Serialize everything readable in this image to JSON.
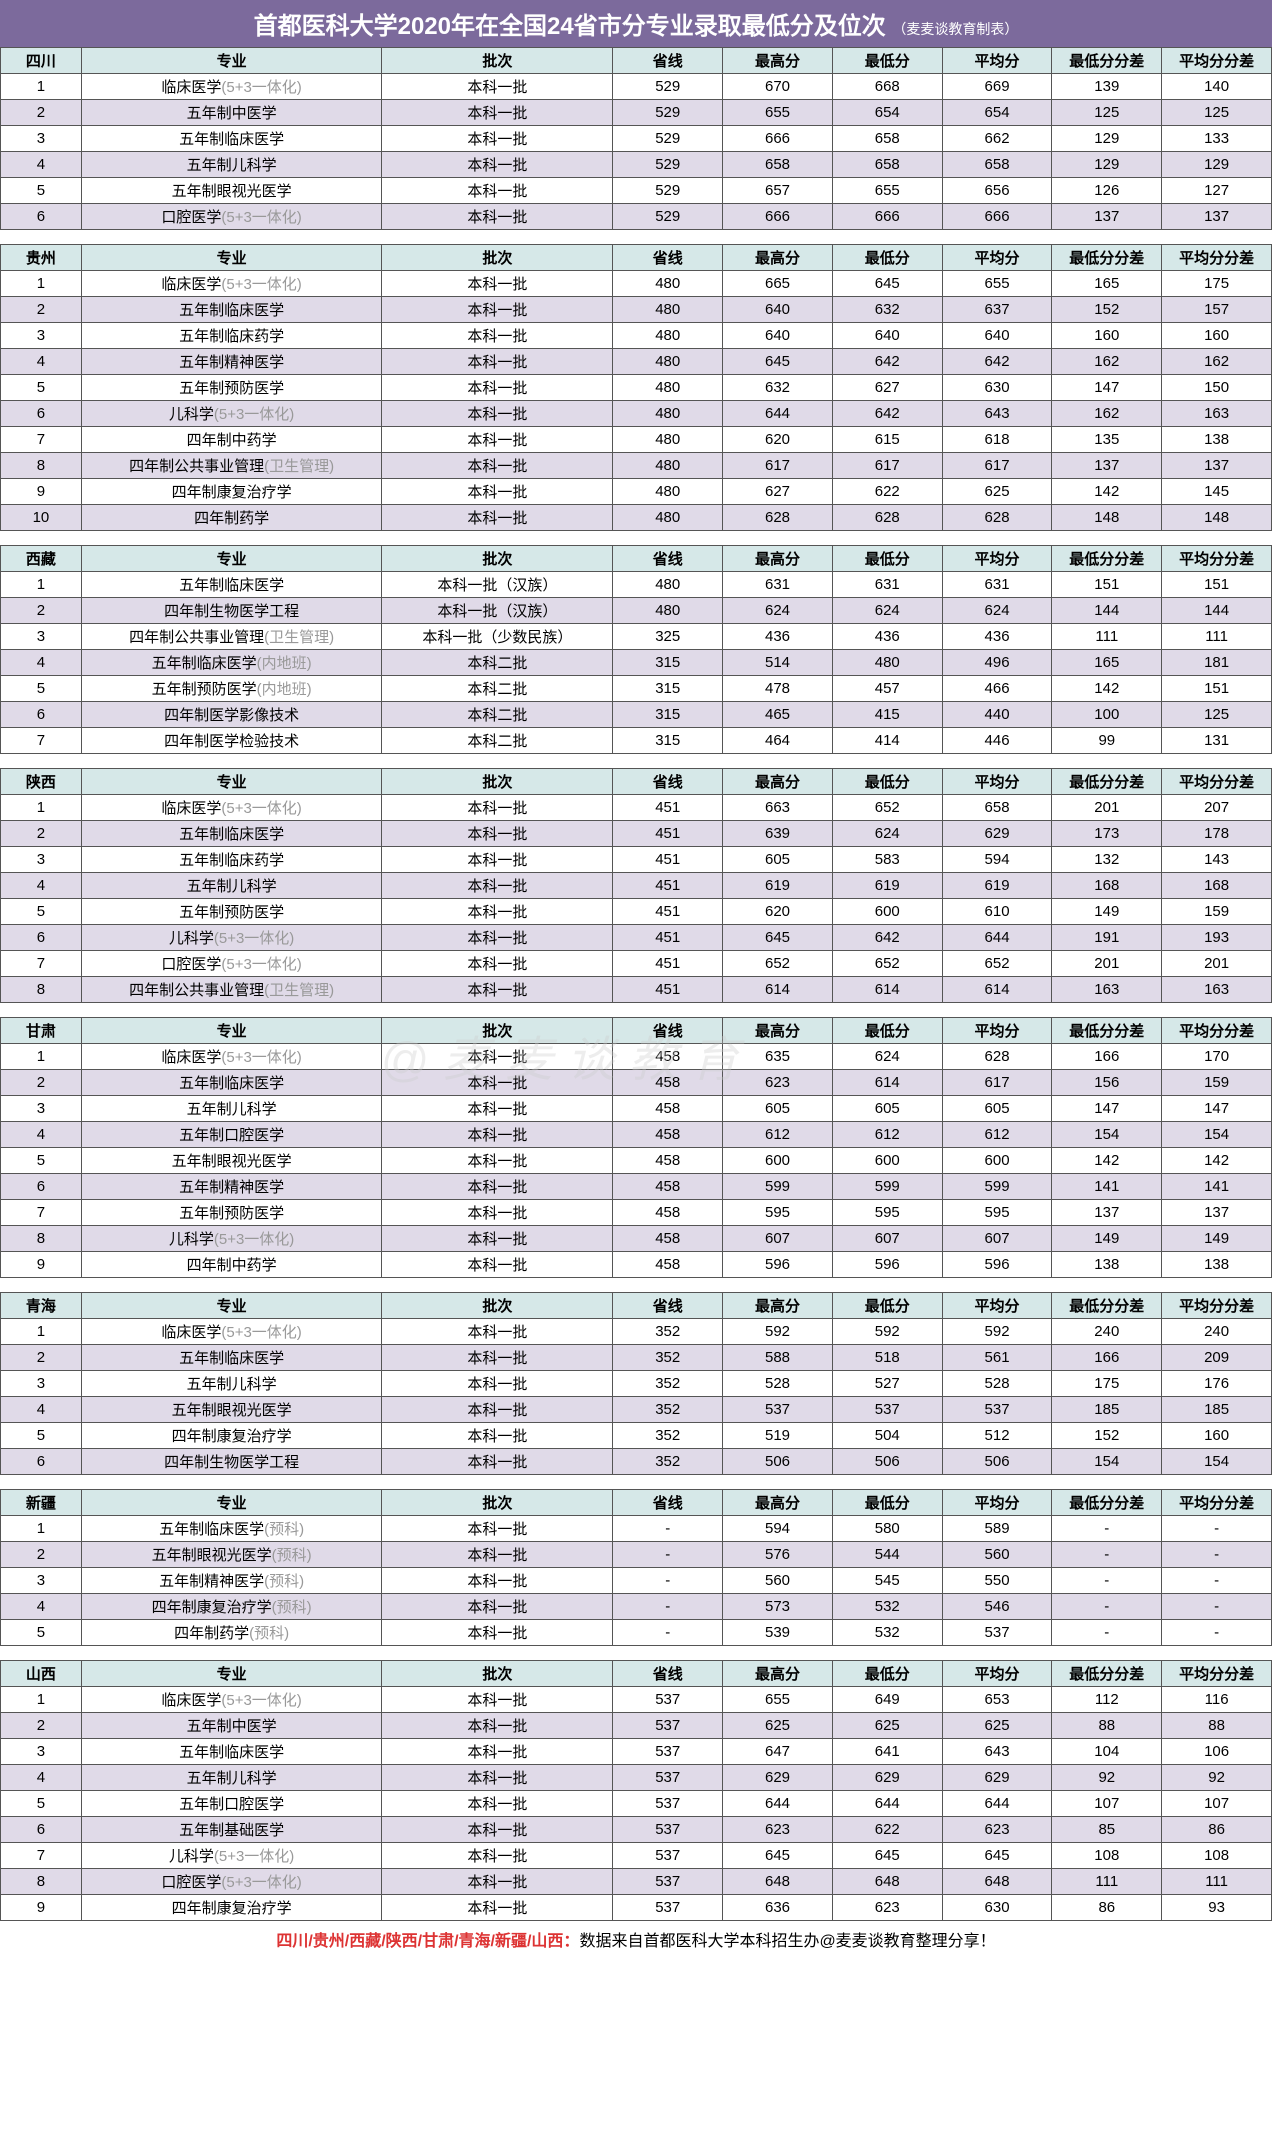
{
  "title_main": "首都医科大学2020年在全国24省市分专业录取最低分及位次",
  "title_sub": "（麦麦谈教育制表）",
  "watermark": "@麦麦谈教育",
  "footer_red": "四川/贵州/西藏/陕西/甘肃/青海/新疆/山西：",
  "footer_black": "数据来自首都医科大学本科招生办@麦麦谈教育整理分享！",
  "columns": [
    "专业",
    "批次",
    "省线",
    "最高分",
    "最低分",
    "平均分",
    "最低分分差",
    "平均分分差"
  ],
  "col_widths": {
    "idx": 70,
    "major": 260,
    "batch": 200,
    "num": 95
  },
  "header_bg": "#d6e8e8",
  "even_bg": "#e0dae8",
  "odd_bg": "#ffffff",
  "title_bg": "#7c6a9c",
  "sections": [
    {
      "province": "四川",
      "rows": [
        {
          "n": "1",
          "major": [
            "临床医学(5+3一体化)",
            true
          ],
          "batch": "本科一批",
          "v": [
            "529",
            "670",
            "668",
            "669",
            "139",
            "140"
          ]
        },
        {
          "n": "2",
          "major": [
            "五年制中医学",
            false
          ],
          "batch": "本科一批",
          "v": [
            "529",
            "655",
            "654",
            "654",
            "125",
            "125"
          ]
        },
        {
          "n": "3",
          "major": [
            "五年制临床医学",
            false
          ],
          "batch": "本科一批",
          "v": [
            "529",
            "666",
            "658",
            "662",
            "129",
            "133"
          ]
        },
        {
          "n": "4",
          "major": [
            "五年制儿科学",
            false
          ],
          "batch": "本科一批",
          "v": [
            "529",
            "658",
            "658",
            "658",
            "129",
            "129"
          ]
        },
        {
          "n": "5",
          "major": [
            "五年制眼视光医学",
            false
          ],
          "batch": "本科一批",
          "v": [
            "529",
            "657",
            "655",
            "656",
            "126",
            "127"
          ]
        },
        {
          "n": "6",
          "major": [
            "口腔医学(5+3一体化)",
            true
          ],
          "batch": "本科一批",
          "v": [
            "529",
            "666",
            "666",
            "666",
            "137",
            "137"
          ]
        }
      ]
    },
    {
      "province": "贵州",
      "rows": [
        {
          "n": "1",
          "major": [
            "临床医学(5+3一体化)",
            true
          ],
          "batch": "本科一批",
          "v": [
            "480",
            "665",
            "645",
            "655",
            "165",
            "175"
          ]
        },
        {
          "n": "2",
          "major": [
            "五年制临床医学",
            false
          ],
          "batch": "本科一批",
          "v": [
            "480",
            "640",
            "632",
            "637",
            "152",
            "157"
          ]
        },
        {
          "n": "3",
          "major": [
            "五年制临床药学",
            false
          ],
          "batch": "本科一批",
          "v": [
            "480",
            "640",
            "640",
            "640",
            "160",
            "160"
          ]
        },
        {
          "n": "4",
          "major": [
            "五年制精神医学",
            false
          ],
          "batch": "本科一批",
          "v": [
            "480",
            "645",
            "642",
            "642",
            "162",
            "162"
          ]
        },
        {
          "n": "5",
          "major": [
            "五年制预防医学",
            false
          ],
          "batch": "本科一批",
          "v": [
            "480",
            "632",
            "627",
            "630",
            "147",
            "150"
          ]
        },
        {
          "n": "6",
          "major": [
            "儿科学(5+3一体化)",
            true
          ],
          "batch": "本科一批",
          "v": [
            "480",
            "644",
            "642",
            "643",
            "162",
            "163"
          ]
        },
        {
          "n": "7",
          "major": [
            "四年制中药学",
            false
          ],
          "batch": "本科一批",
          "v": [
            "480",
            "620",
            "615",
            "618",
            "135",
            "138"
          ]
        },
        {
          "n": "8",
          "major": [
            "四年制公共事业管理(卫生管理)",
            true
          ],
          "batch": "本科一批",
          "v": [
            "480",
            "617",
            "617",
            "617",
            "137",
            "137"
          ]
        },
        {
          "n": "9",
          "major": [
            "四年制康复治疗学",
            false
          ],
          "batch": "本科一批",
          "v": [
            "480",
            "627",
            "622",
            "625",
            "142",
            "145"
          ]
        },
        {
          "n": "10",
          "major": [
            "四年制药学",
            false
          ],
          "batch": "本科一批",
          "v": [
            "480",
            "628",
            "628",
            "628",
            "148",
            "148"
          ]
        }
      ]
    },
    {
      "province": "西藏",
      "rows": [
        {
          "n": "1",
          "major": [
            "五年制临床医学",
            false
          ],
          "batch": "本科一批（汉族）",
          "v": [
            "480",
            "631",
            "631",
            "631",
            "151",
            "151"
          ]
        },
        {
          "n": "2",
          "major": [
            "四年制生物医学工程",
            false
          ],
          "batch": "本科一批（汉族）",
          "v": [
            "480",
            "624",
            "624",
            "624",
            "144",
            "144"
          ]
        },
        {
          "n": "3",
          "major": [
            "四年制公共事业管理(卫生管理)",
            true
          ],
          "batch": "本科一批（少数民族）",
          "v": [
            "325",
            "436",
            "436",
            "436",
            "111",
            "111"
          ]
        },
        {
          "n": "4",
          "major": [
            "五年制临床医学(内地班)",
            true
          ],
          "batch": "本科二批",
          "v": [
            "315",
            "514",
            "480",
            "496",
            "165",
            "181"
          ]
        },
        {
          "n": "5",
          "major": [
            "五年制预防医学(内地班)",
            true
          ],
          "batch": "本科二批",
          "v": [
            "315",
            "478",
            "457",
            "466",
            "142",
            "151"
          ]
        },
        {
          "n": "6",
          "major": [
            "四年制医学影像技术",
            false
          ],
          "batch": "本科二批",
          "v": [
            "315",
            "465",
            "415",
            "440",
            "100",
            "125"
          ]
        },
        {
          "n": "7",
          "major": [
            "四年制医学检验技术",
            false
          ],
          "batch": "本科二批",
          "v": [
            "315",
            "464",
            "414",
            "446",
            "99",
            "131"
          ]
        }
      ]
    },
    {
      "province": "陕西",
      "rows": [
        {
          "n": "1",
          "major": [
            "临床医学(5+3一体化)",
            true
          ],
          "batch": "本科一批",
          "v": [
            "451",
            "663",
            "652",
            "658",
            "201",
            "207"
          ]
        },
        {
          "n": "2",
          "major": [
            "五年制临床医学",
            false
          ],
          "batch": "本科一批",
          "v": [
            "451",
            "639",
            "624",
            "629",
            "173",
            "178"
          ]
        },
        {
          "n": "3",
          "major": [
            "五年制临床药学",
            false
          ],
          "batch": "本科一批",
          "v": [
            "451",
            "605",
            "583",
            "594",
            "132",
            "143"
          ]
        },
        {
          "n": "4",
          "major": [
            "五年制儿科学",
            false
          ],
          "batch": "本科一批",
          "v": [
            "451",
            "619",
            "619",
            "619",
            "168",
            "168"
          ]
        },
        {
          "n": "5",
          "major": [
            "五年制预防医学",
            false
          ],
          "batch": "本科一批",
          "v": [
            "451",
            "620",
            "600",
            "610",
            "149",
            "159"
          ]
        },
        {
          "n": "6",
          "major": [
            "儿科学(5+3一体化)",
            true
          ],
          "batch": "本科一批",
          "v": [
            "451",
            "645",
            "642",
            "644",
            "191",
            "193"
          ]
        },
        {
          "n": "7",
          "major": [
            "口腔医学(5+3一体化)",
            true
          ],
          "batch": "本科一批",
          "v": [
            "451",
            "652",
            "652",
            "652",
            "201",
            "201"
          ]
        },
        {
          "n": "8",
          "major": [
            "四年制公共事业管理(卫生管理)",
            true
          ],
          "batch": "本科一批",
          "v": [
            "451",
            "614",
            "614",
            "614",
            "163",
            "163"
          ]
        }
      ]
    },
    {
      "province": "甘肃",
      "rows": [
        {
          "n": "1",
          "major": [
            "临床医学(5+3一体化)",
            true
          ],
          "batch": "本科一批",
          "v": [
            "458",
            "635",
            "624",
            "628",
            "166",
            "170"
          ]
        },
        {
          "n": "2",
          "major": [
            "五年制临床医学",
            false
          ],
          "batch": "本科一批",
          "v": [
            "458",
            "623",
            "614",
            "617",
            "156",
            "159"
          ]
        },
        {
          "n": "3",
          "major": [
            "五年制儿科学",
            false
          ],
          "batch": "本科一批",
          "v": [
            "458",
            "605",
            "605",
            "605",
            "147",
            "147"
          ]
        },
        {
          "n": "4",
          "major": [
            "五年制口腔医学",
            false
          ],
          "batch": "本科一批",
          "v": [
            "458",
            "612",
            "612",
            "612",
            "154",
            "154"
          ]
        },
        {
          "n": "5",
          "major": [
            "五年制眼视光医学",
            false
          ],
          "batch": "本科一批",
          "v": [
            "458",
            "600",
            "600",
            "600",
            "142",
            "142"
          ]
        },
        {
          "n": "6",
          "major": [
            "五年制精神医学",
            false
          ],
          "batch": "本科一批",
          "v": [
            "458",
            "599",
            "599",
            "599",
            "141",
            "141"
          ]
        },
        {
          "n": "7",
          "major": [
            "五年制预防医学",
            false
          ],
          "batch": "本科一批",
          "v": [
            "458",
            "595",
            "595",
            "595",
            "137",
            "137"
          ]
        },
        {
          "n": "8",
          "major": [
            "儿科学(5+3一体化)",
            true
          ],
          "batch": "本科一批",
          "v": [
            "458",
            "607",
            "607",
            "607",
            "149",
            "149"
          ]
        },
        {
          "n": "9",
          "major": [
            "四年制中药学",
            false
          ],
          "batch": "本科一批",
          "v": [
            "458",
            "596",
            "596",
            "596",
            "138",
            "138"
          ]
        }
      ]
    },
    {
      "province": "青海",
      "rows": [
        {
          "n": "1",
          "major": [
            "临床医学(5+3一体化)",
            true
          ],
          "batch": "本科一批",
          "v": [
            "352",
            "592",
            "592",
            "592",
            "240",
            "240"
          ]
        },
        {
          "n": "2",
          "major": [
            "五年制临床医学",
            false
          ],
          "batch": "本科一批",
          "v": [
            "352",
            "588",
            "518",
            "561",
            "166",
            "209"
          ]
        },
        {
          "n": "3",
          "major": [
            "五年制儿科学",
            false
          ],
          "batch": "本科一批",
          "v": [
            "352",
            "528",
            "527",
            "528",
            "175",
            "176"
          ]
        },
        {
          "n": "4",
          "major": [
            "五年制眼视光医学",
            false
          ],
          "batch": "本科一批",
          "v": [
            "352",
            "537",
            "537",
            "537",
            "185",
            "185"
          ]
        },
        {
          "n": "5",
          "major": [
            "四年制康复治疗学",
            false
          ],
          "batch": "本科一批",
          "v": [
            "352",
            "519",
            "504",
            "512",
            "152",
            "160"
          ]
        },
        {
          "n": "6",
          "major": [
            "四年制生物医学工程",
            false
          ],
          "batch": "本科一批",
          "v": [
            "352",
            "506",
            "506",
            "506",
            "154",
            "154"
          ]
        }
      ]
    },
    {
      "province": "新疆",
      "rows": [
        {
          "n": "1",
          "major": [
            "五年制临床医学(预科)",
            true
          ],
          "batch": "本科一批",
          "v": [
            "-",
            "594",
            "580",
            "589",
            "-",
            "-"
          ]
        },
        {
          "n": "2",
          "major": [
            "五年制眼视光医学(预科)",
            true
          ],
          "batch": "本科一批",
          "v": [
            "-",
            "576",
            "544",
            "560",
            "-",
            "-"
          ]
        },
        {
          "n": "3",
          "major": [
            "五年制精神医学(预科)",
            true
          ],
          "batch": "本科一批",
          "v": [
            "-",
            "560",
            "545",
            "550",
            "-",
            "-"
          ]
        },
        {
          "n": "4",
          "major": [
            "四年制康复治疗学(预科)",
            true
          ],
          "batch": "本科一批",
          "v": [
            "-",
            "573",
            "532",
            "546",
            "-",
            "-"
          ]
        },
        {
          "n": "5",
          "major": [
            "四年制药学(预科)",
            true
          ],
          "batch": "本科一批",
          "v": [
            "-",
            "539",
            "532",
            "537",
            "-",
            "-"
          ]
        }
      ]
    },
    {
      "province": "山西",
      "rows": [
        {
          "n": "1",
          "major": [
            "临床医学(5+3一体化)",
            true
          ],
          "batch": "本科一批",
          "v": [
            "537",
            "655",
            "649",
            "653",
            "112",
            "116"
          ]
        },
        {
          "n": "2",
          "major": [
            "五年制中医学",
            false
          ],
          "batch": "本科一批",
          "v": [
            "537",
            "625",
            "625",
            "625",
            "88",
            "88"
          ]
        },
        {
          "n": "3",
          "major": [
            "五年制临床医学",
            false
          ],
          "batch": "本科一批",
          "v": [
            "537",
            "647",
            "641",
            "643",
            "104",
            "106"
          ]
        },
        {
          "n": "4",
          "major": [
            "五年制儿科学",
            false
          ],
          "batch": "本科一批",
          "v": [
            "537",
            "629",
            "629",
            "629",
            "92",
            "92"
          ]
        },
        {
          "n": "5",
          "major": [
            "五年制口腔医学",
            false
          ],
          "batch": "本科一批",
          "v": [
            "537",
            "644",
            "644",
            "644",
            "107",
            "107"
          ]
        },
        {
          "n": "6",
          "major": [
            "五年制基础医学",
            false
          ],
          "batch": "本科一批",
          "v": [
            "537",
            "623",
            "622",
            "623",
            "85",
            "86"
          ]
        },
        {
          "n": "7",
          "major": [
            "儿科学(5+3一体化)",
            true
          ],
          "batch": "本科一批",
          "v": [
            "537",
            "645",
            "645",
            "645",
            "108",
            "108"
          ]
        },
        {
          "n": "8",
          "major": [
            "口腔医学(5+3一体化)",
            true
          ],
          "batch": "本科一批",
          "v": [
            "537",
            "648",
            "648",
            "648",
            "111",
            "111"
          ]
        },
        {
          "n": "9",
          "major": [
            "四年制康复治疗学",
            false
          ],
          "batch": "本科一批",
          "v": [
            "537",
            "636",
            "623",
            "630",
            "86",
            "93"
          ]
        }
      ]
    }
  ]
}
